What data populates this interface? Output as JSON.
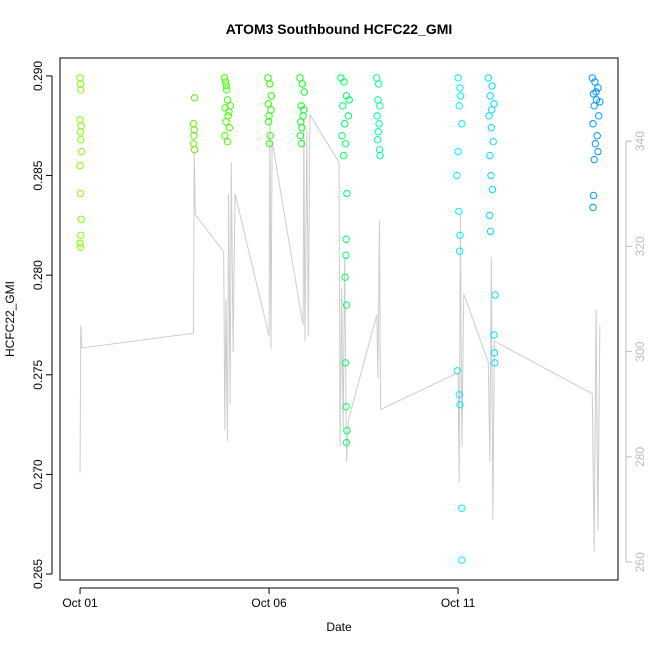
{
  "chart_data": {
    "type": "scatter",
    "title": "ATOM3 Southbound HCFC22_GMI",
    "xlabel": "Date",
    "ylabel": "HCFC22_GMI",
    "xlim": [
      -0.53,
      14.23
    ],
    "xticks": [
      {
        "value": 0,
        "label": "Oct 01"
      },
      {
        "value": 5,
        "label": "Oct 06"
      },
      {
        "value": 10,
        "label": "Oct 11"
      }
    ],
    "ylim": [
      0.2647,
      0.2909
    ],
    "yticks": [
      0.265,
      {
        "value": 0.27,
        "label": "0.270"
      },
      0.275,
      {
        "value": 0.28,
        "label": "0.280"
      },
      0.285,
      {
        "value": 0.29,
        "label": "0.290"
      }
    ],
    "y2lim": [
      256.6,
      355.8
    ],
    "y2ticks": [
      260,
      280,
      300,
      320,
      340
    ],
    "series": [
      {
        "type": "line",
        "axis": "y2",
        "color": "#cccccc",
        "x": [
          0.0,
          0.02,
          0.05,
          3.0,
          3.02,
          3.05,
          3.8,
          3.83,
          3.86,
          3.9,
          3.93,
          3.97,
          4.0,
          4.05,
          4.1,
          5.0,
          5.02,
          5.05,
          5.08,
          5.9,
          5.92,
          5.95,
          6.0,
          6.04,
          6.08,
          6.85,
          6.88,
          6.92,
          6.96,
          7.0,
          7.05,
          7.1,
          7.85,
          7.88,
          7.92,
          7.95,
          10.0,
          10.03,
          10.06,
          10.1,
          10.15,
          10.8,
          10.84,
          10.88,
          10.92,
          10.96,
          13.55,
          13.6,
          13.65,
          13.7,
          13.75
        ],
        "values": [
          277,
          305,
          300.7,
          303.5,
          338,
          326,
          319,
          285,
          310,
          283,
          330,
          290,
          336,
          300,
          330,
          303,
          344,
          300.5,
          340,
          305,
          344,
          302,
          342,
          303,
          345,
          336,
          282,
          312,
          285,
          318,
          279,
          287,
          307,
          295,
          325,
          289,
          296,
          275,
          326,
          282,
          311,
          298,
          279,
          318,
          268,
          302,
          292,
          262,
          308,
          266,
          305
        ]
      },
      {
        "color": "#80ff00",
        "x": [
          0.0,
          0.01,
          0.02,
          0.0,
          0.03,
          0.01,
          0.02,
          0.04,
          0.0,
          0.01,
          0.03,
          0.02,
          0.0,
          0.01
        ],
        "values": [
          0.2899,
          0.2896,
          0.2893,
          0.2878,
          0.2875,
          0.2872,
          0.2868,
          0.2862,
          0.2855,
          0.2841,
          0.2828,
          0.282,
          0.2816,
          0.2814
        ]
      },
      {
        "color": "#66f000",
        "x": [
          3.03,
          3.0,
          3.02,
          3.01,
          3.0,
          3.03
        ],
        "values": [
          0.2889,
          0.2876,
          0.2873,
          0.287,
          0.2866,
          0.2863
        ]
      },
      {
        "color": "#44ff00",
        "x": [
          3.82,
          3.85,
          3.88,
          3.9,
          3.84,
          3.92,
          3.86,
          3.95,
          3.83,
          3.9,
          3.98,
          3.87,
          3.94
        ],
        "values": [
          0.2899,
          0.2897,
          0.2893,
          0.2888,
          0.2884,
          0.288,
          0.2877,
          0.2874,
          0.287,
          0.2867,
          0.2885,
          0.2895,
          0.2882
        ]
      },
      {
        "color": "#22ff00",
        "x": [
          4.97,
          5.02,
          4.98,
          5.05,
          5.0,
          4.99,
          5.03,
          5.01,
          5.06
        ],
        "values": [
          0.2899,
          0.2896,
          0.2886,
          0.2883,
          0.288,
          0.2877,
          0.287,
          0.2866,
          0.289
        ]
      },
      {
        "color": "#11ff22",
        "x": [
          5.82,
          5.88,
          5.93,
          5.85,
          5.9,
          5.84,
          5.87,
          5.83,
          5.86,
          5.92
        ],
        "values": [
          0.2899,
          0.2896,
          0.2892,
          0.2885,
          0.288,
          0.2877,
          0.2874,
          0.287,
          0.2866,
          0.2883
        ]
      },
      {
        "color": "#00ff66",
        "x": [
          6.9,
          6.98,
          7.05,
          6.95,
          7.0,
          6.93,
          7.02,
          6.97,
          7.06,
          7.04,
          7.03,
          7.01,
          7.05,
          7.02,
          7.04,
          7.06,
          7.05,
          7.1,
          7.12
        ],
        "values": [
          0.2899,
          0.2897,
          0.289,
          0.2885,
          0.2876,
          0.287,
          0.2866,
          0.286,
          0.2841,
          0.2818,
          0.281,
          0.2799,
          0.2785,
          0.2756,
          0.2734,
          0.2722,
          0.2716,
          0.288,
          0.2888
        ]
      },
      {
        "color": "#00ff99",
        "x": [
          7.85,
          7.9,
          7.88,
          7.93,
          7.86,
          7.91,
          7.89,
          7.87,
          7.92,
          7.94
        ],
        "values": [
          0.2899,
          0.2896,
          0.2888,
          0.2885,
          0.288,
          0.2876,
          0.2872,
          0.2868,
          0.2863,
          0.286
        ]
      },
      {
        "color": "#00f0ff",
        "x": [
          10.0,
          10.05,
          10.03,
          10.1,
          10.0,
          9.97,
          10.02,
          10.05,
          10.04,
          9.98,
          10.03,
          10.05,
          10.1,
          10.1,
          10.07
        ],
        "values": [
          0.2899,
          0.2894,
          0.2885,
          0.2876,
          0.2862,
          0.285,
          0.2832,
          0.282,
          0.2812,
          0.2752,
          0.274,
          0.2735,
          0.2683,
          0.2657,
          0.289
        ]
      },
      {
        "color": "#00ddff",
        "x": [
          10.8,
          10.9,
          10.85,
          10.95,
          10.82,
          10.88,
          10.93,
          10.84,
          10.87,
          10.91,
          10.83,
          10.86,
          10.98,
          10.95,
          10.96,
          10.97,
          10.89
        ],
        "values": [
          0.2899,
          0.2895,
          0.289,
          0.2886,
          0.288,
          0.2874,
          0.2867,
          0.286,
          0.285,
          0.2843,
          0.283,
          0.2822,
          0.279,
          0.277,
          0.2761,
          0.2756,
          0.2883
        ]
      },
      {
        "color": "#0099ff",
        "x": [
          13.55,
          13.62,
          13.7,
          13.58,
          13.66,
          13.6,
          13.72,
          13.57,
          13.68,
          13.63,
          13.7,
          13.6,
          13.58,
          13.57,
          13.65,
          13.75
        ],
        "values": [
          0.2899,
          0.2897,
          0.2894,
          0.2891,
          0.2888,
          0.2885,
          0.288,
          0.2876,
          0.287,
          0.2866,
          0.2862,
          0.2858,
          0.284,
          0.2834,
          0.2892,
          0.2887
        ]
      }
    ]
  }
}
